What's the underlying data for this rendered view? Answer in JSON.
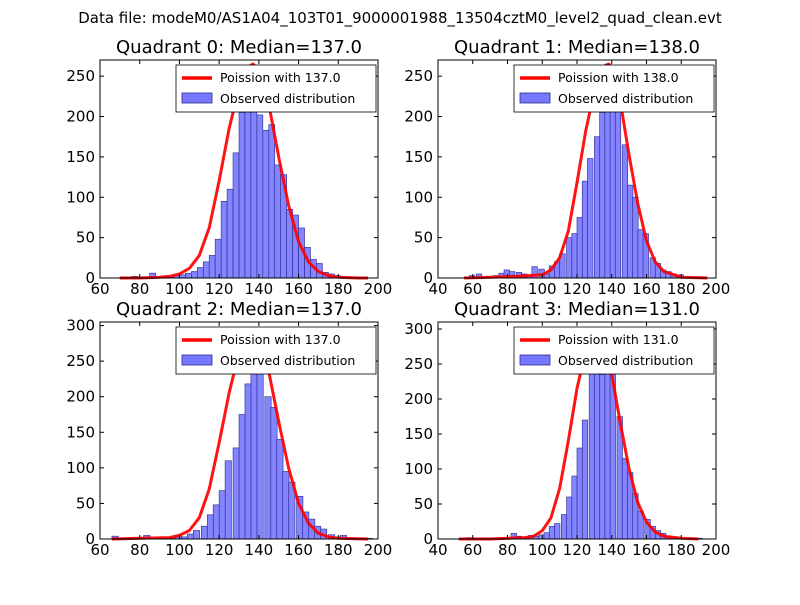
{
  "figure_title": "Data file: modeM0/AS1A04_103T01_9000001988_13504cztM0_level2_quad_clean.evt",
  "colors": {
    "bars": "#7777ff",
    "bar_edge": "#2a2a8f",
    "poisson": "#ff0000",
    "axes": "#000000"
  },
  "chart_data": [
    {
      "type": "bar",
      "title": "Quadrant 0: Median=137.0",
      "median": 137.0,
      "legend": {
        "line_label": "Poission with 137.0",
        "bar_label": "Observed distribution",
        "placement": "upper-right"
      },
      "xlim": [
        60,
        200
      ],
      "ylim": [
        0,
        270
      ],
      "xticks": [
        60,
        80,
        100,
        120,
        140,
        160,
        180,
        200
      ],
      "yticks": [
        0,
        50,
        100,
        150,
        200,
        250
      ],
      "bin_width": 3.0,
      "bins": [
        [
          70,
          1
        ],
        [
          73,
          1
        ],
        [
          76,
          2
        ],
        [
          79,
          1
        ],
        [
          82,
          0
        ],
        [
          85,
          6
        ],
        [
          88,
          1
        ],
        [
          91,
          2
        ],
        [
          94,
          1
        ],
        [
          97,
          3
        ],
        [
          100,
          4
        ],
        [
          103,
          6
        ],
        [
          106,
          8
        ],
        [
          109,
          13
        ],
        [
          112,
          20
        ],
        [
          115,
          28
        ],
        [
          118,
          48
        ],
        [
          121,
          95
        ],
        [
          124,
          110
        ],
        [
          127,
          155
        ],
        [
          130,
          205
        ],
        [
          133,
          225
        ],
        [
          136,
          233
        ],
        [
          139,
          202
        ],
        [
          142,
          183
        ],
        [
          145,
          190
        ],
        [
          148,
          140
        ],
        [
          151,
          128
        ],
        [
          154,
          85
        ],
        [
          157,
          78
        ],
        [
          160,
          62
        ],
        [
          163,
          38
        ],
        [
          166,
          23
        ],
        [
          169,
          18
        ],
        [
          172,
          7
        ],
        [
          175,
          5
        ],
        [
          178,
          3
        ],
        [
          181,
          2
        ],
        [
          184,
          1
        ],
        [
          187,
          1
        ],
        [
          190,
          1
        ]
      ],
      "poisson_curve": {
        "x": [
          70,
          80,
          90,
          95,
          100,
          105,
          110,
          115,
          120,
          125,
          130,
          135,
          137,
          140,
          145,
          150,
          155,
          160,
          165,
          170,
          175,
          180,
          190,
          195
        ],
        "y": [
          0,
          0,
          1,
          2,
          5,
          12,
          28,
          62,
          120,
          185,
          235,
          262,
          265,
          258,
          215,
          150,
          90,
          45,
          20,
          8,
          3,
          1,
          0,
          0
        ]
      }
    },
    {
      "type": "bar",
      "title": "Quadrant 1: Median=138.0",
      "median": 138.0,
      "legend": {
        "line_label": "Poission with 138.0",
        "bar_label": "Observed distribution",
        "placement": "upper-right"
      },
      "xlim": [
        40,
        200
      ],
      "ylim": [
        0,
        270
      ],
      "xticks": [
        40,
        60,
        80,
        100,
        120,
        140,
        160,
        180,
        200
      ],
      "yticks": [
        0,
        50,
        100,
        150,
        200,
        250
      ],
      "bin_width": 3.2,
      "bins": [
        [
          55,
          1
        ],
        [
          58,
          3
        ],
        [
          62,
          5
        ],
        [
          65,
          1
        ],
        [
          68,
          2
        ],
        [
          72,
          3
        ],
        [
          75,
          6
        ],
        [
          78,
          10
        ],
        [
          81,
          8
        ],
        [
          85,
          7
        ],
        [
          88,
          5
        ],
        [
          91,
          2
        ],
        [
          94,
          14
        ],
        [
          98,
          11
        ],
        [
          101,
          5
        ],
        [
          104,
          15
        ],
        [
          107,
          20
        ],
        [
          110,
          30
        ],
        [
          114,
          50
        ],
        [
          117,
          55
        ],
        [
          120,
          75
        ],
        [
          123,
          120
        ],
        [
          126,
          148
        ],
        [
          130,
          175
        ],
        [
          133,
          205
        ],
        [
          136,
          265
        ],
        [
          139,
          240
        ],
        [
          142,
          220
        ],
        [
          146,
          165
        ],
        [
          149,
          115
        ],
        [
          152,
          100
        ],
        [
          155,
          60
        ],
        [
          158,
          55
        ],
        [
          162,
          25
        ],
        [
          165,
          18
        ],
        [
          168,
          10
        ],
        [
          171,
          8
        ],
        [
          174,
          5
        ],
        [
          178,
          4
        ],
        [
          181,
          1
        ],
        [
          184,
          1
        ],
        [
          188,
          1
        ]
      ],
      "poisson_curve": {
        "x": [
          55,
          70,
          85,
          100,
          105,
          110,
          115,
          120,
          125,
          130,
          135,
          138,
          140,
          145,
          150,
          155,
          160,
          165,
          170,
          180,
          195
        ],
        "y": [
          0,
          1,
          2,
          4,
          10,
          25,
          58,
          118,
          182,
          232,
          260,
          265,
          262,
          218,
          152,
          92,
          46,
          20,
          8,
          1,
          0
        ]
      }
    },
    {
      "type": "bar",
      "title": "Quadrant 2: Median=137.0",
      "median": 137.0,
      "legend": {
        "line_label": "Poission with 137.0",
        "bar_label": "Observed distribution",
        "placement": "upper-right"
      },
      "xlim": [
        60,
        200
      ],
      "ylim": [
        0,
        305
      ],
      "xticks": [
        60,
        80,
        100,
        120,
        140,
        160,
        180,
        200
      ],
      "yticks": [
        0,
        50,
        100,
        150,
        200,
        250,
        300
      ],
      "bin_width": 3.2,
      "bins": [
        [
          66,
          4
        ],
        [
          69,
          1
        ],
        [
          73,
          1
        ],
        [
          76,
          1
        ],
        [
          79,
          2
        ],
        [
          82,
          5
        ],
        [
          85,
          1
        ],
        [
          88,
          1
        ],
        [
          92,
          1
        ],
        [
          95,
          2
        ],
        [
          98,
          4
        ],
        [
          101,
          3
        ],
        [
          104,
          7
        ],
        [
          107,
          12
        ],
        [
          111,
          18
        ],
        [
          114,
          34
        ],
        [
          117,
          48
        ],
        [
          120,
          68
        ],
        [
          123,
          110
        ],
        [
          127,
          128
        ],
        [
          130,
          175
        ],
        [
          133,
          218
        ],
        [
          136,
          295
        ],
        [
          139,
          255
        ],
        [
          143,
          200
        ],
        [
          146,
          185
        ],
        [
          149,
          140
        ],
        [
          152,
          95
        ],
        [
          155,
          80
        ],
        [
          159,
          60
        ],
        [
          162,
          38
        ],
        [
          165,
          28
        ],
        [
          168,
          18
        ],
        [
          171,
          14
        ],
        [
          175,
          6
        ],
        [
          178,
          3
        ],
        [
          181,
          5
        ],
        [
          184,
          1
        ],
        [
          187,
          1
        ],
        [
          191,
          1
        ],
        [
          194,
          1
        ]
      ],
      "poisson_curve": {
        "x": [
          66,
          80,
          95,
          100,
          105,
          110,
          115,
          120,
          125,
          130,
          135,
          137,
          140,
          145,
          150,
          155,
          160,
          165,
          170,
          175,
          180,
          195
        ],
        "y": [
          0,
          1,
          2,
          5,
          12,
          30,
          70,
          135,
          205,
          262,
          292,
          295,
          285,
          235,
          165,
          100,
          50,
          22,
          8,
          3,
          1,
          0
        ]
      }
    },
    {
      "type": "bar",
      "title": "Quadrant 3: Median=131.0",
      "median": 131.0,
      "legend": {
        "line_label": "Poission with 131.0",
        "bar_label": "Observed distribution",
        "placement": "upper-right"
      },
      "xlim": [
        40,
        200
      ],
      "ylim": [
        0,
        310
      ],
      "xticks": [
        40,
        60,
        80,
        100,
        120,
        140,
        160,
        180,
        200
      ],
      "yticks": [
        0,
        50,
        100,
        150,
        200,
        250,
        300
      ],
      "bin_width": 3.2,
      "bins": [
        [
          52,
          1
        ],
        [
          56,
          2
        ],
        [
          60,
          1
        ],
        [
          64,
          1
        ],
        [
          68,
          1
        ],
        [
          72,
          1
        ],
        [
          76,
          2
        ],
        [
          80,
          1
        ],
        [
          82,
          8
        ],
        [
          85,
          4
        ],
        [
          88,
          2
        ],
        [
          92,
          5
        ],
        [
          95,
          4
        ],
        [
          98,
          6
        ],
        [
          101,
          9
        ],
        [
          104,
          18
        ],
        [
          107,
          22
        ],
        [
          111,
          35
        ],
        [
          114,
          60
        ],
        [
          117,
          90
        ],
        [
          120,
          130
        ],
        [
          123,
          170
        ],
        [
          127,
          260
        ],
        [
          130,
          280
        ],
        [
          133,
          235
        ],
        [
          136,
          260
        ],
        [
          139,
          240
        ],
        [
          143,
          175
        ],
        [
          146,
          115
        ],
        [
          149,
          95
        ],
        [
          152,
          65
        ],
        [
          155,
          40
        ],
        [
          159,
          28
        ],
        [
          162,
          18
        ],
        [
          165,
          12
        ],
        [
          168,
          8
        ],
        [
          171,
          4
        ],
        [
          175,
          2
        ],
        [
          178,
          1
        ],
        [
          181,
          1
        ],
        [
          185,
          1
        ],
        [
          189,
          1
        ]
      ],
      "poisson_curve": {
        "x": [
          52,
          70,
          90,
          95,
          100,
          105,
          110,
          115,
          120,
          125,
          130,
          131,
          135,
          140,
          145,
          150,
          155,
          160,
          165,
          170,
          180,
          190
        ],
        "y": [
          0,
          0,
          2,
          4,
          12,
          30,
          72,
          140,
          215,
          270,
          298,
          300,
          285,
          235,
          165,
          100,
          52,
          24,
          10,
          4,
          1,
          0
        ]
      }
    }
  ]
}
